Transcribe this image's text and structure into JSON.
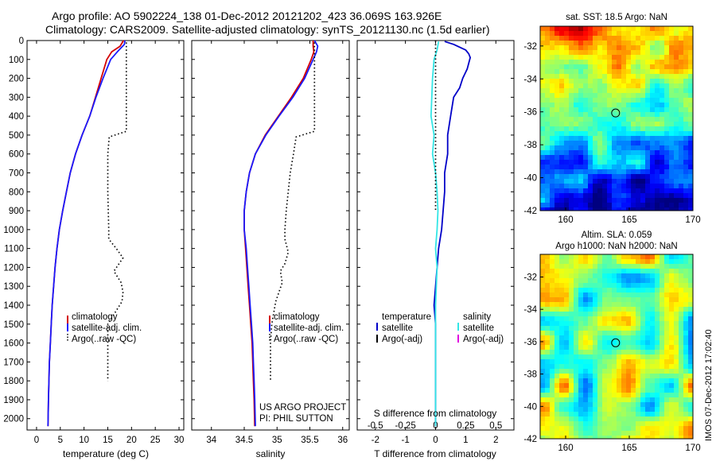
{
  "header": {
    "line1": "Argo profile: AO 5902224_138 01-Dec-2012 20121202_423 36.069S 163.926E",
    "line2": "Climatology: CARS2009. Satellite-adjusted climatology: synTS_20121130.nc (1.5d earlier)"
  },
  "project_note": {
    "line1": "US ARGO PROJECT",
    "line2": "PI: PHIL SUTTON"
  },
  "stamp": "IMOS 07-Dec-2012 17:02:40",
  "colors": {
    "climatology": "#d40000",
    "satellite": "#1a1aff",
    "argo": "#000000",
    "t_satellite": "#0000c8",
    "s_satellite": "#33e6e6",
    "s_argo": "#e000e0"
  },
  "chart_data": [
    {
      "type": "line",
      "xlabel": "temperature (deg C)",
      "ylabel": "",
      "xlim": [
        -2,
        31
      ],
      "ylim": [
        2060,
        0
      ],
      "xticks": [
        0,
        5,
        10,
        15,
        20,
        25,
        30
      ],
      "yticks": [
        0,
        100,
        200,
        300,
        400,
        500,
        600,
        700,
        800,
        900,
        1000,
        1100,
        1200,
        1300,
        1400,
        1500,
        1600,
        1700,
        1800,
        1900,
        2000
      ],
      "legend": [
        "climatology",
        "satellite-adj. clim.",
        "Argo(..raw -QC)"
      ],
      "legend_position": "lower-middle",
      "series": [
        {
          "name": "climatology",
          "style": "solid",
          "color": "#d40000",
          "x": [
            18.3,
            17.6,
            15.8,
            14.8,
            13.6,
            12.4,
            11.2,
            9.6,
            8.2,
            7.1,
            6.3,
            5.5,
            4.8,
            4.3,
            3.9,
            3.6,
            3.3,
            3.1,
            2.9,
            2.7,
            2.6,
            2.5,
            2.4
          ],
          "y": [
            0,
            30,
            60,
            100,
            200,
            300,
            400,
            500,
            600,
            700,
            800,
            900,
            1000,
            1100,
            1200,
            1300,
            1400,
            1500,
            1600,
            1700,
            1800,
            1900,
            2040
          ]
        },
        {
          "name": "satellite-adj. clim.",
          "style": "solid",
          "color": "#1a1aff",
          "x": [
            18.6,
            18.5,
            17.0,
            15.6,
            14.0,
            12.5,
            11.2,
            9.6,
            8.2,
            7.1,
            6.3,
            5.5,
            4.8,
            4.3,
            3.9,
            3.6,
            3.3,
            3.1,
            2.9,
            2.7,
            2.6,
            2.5,
            2.4
          ],
          "y": [
            0,
            20,
            60,
            100,
            200,
            300,
            400,
            500,
            600,
            700,
            800,
            900,
            1000,
            1100,
            1200,
            1300,
            1400,
            1500,
            1600,
            1700,
            1800,
            1900,
            2040
          ]
        },
        {
          "name": "Argo(..raw -QC)",
          "style": "dotted",
          "color": "#000000",
          "x": [
            18.9,
            18.9,
            18.9,
            18.9,
            18.9,
            18.9,
            15.3,
            15.0,
            15.0,
            15.0,
            15.1,
            15.2,
            15.2,
            16.8,
            18.2,
            16.3,
            17.8,
            18.2,
            18.0,
            15.0,
            15.0,
            15.0,
            15.0
          ],
          "y": [
            10,
            100,
            200,
            300,
            400,
            480,
            510,
            600,
            700,
            800,
            900,
            1000,
            1050,
            1100,
            1150,
            1220,
            1280,
            1330,
            1380,
            1500,
            1600,
            1700,
            1800
          ]
        }
      ]
    },
    {
      "type": "line",
      "xlabel": "salinity",
      "ylabel": "",
      "xlim": [
        33.7,
        36.1
      ],
      "ylim": [
        2060,
        0
      ],
      "xticks": [
        34,
        34.5,
        35,
        35.5,
        36
      ],
      "legend": [
        "climatology",
        "satellite-adj. clim.",
        "Argo(..raw -QC)"
      ],
      "legend_position": "lower-middle",
      "series": [
        {
          "name": "climatology",
          "style": "solid",
          "color": "#d40000",
          "x": [
            35.55,
            35.55,
            35.56,
            35.52,
            35.4,
            35.22,
            35.02,
            34.82,
            34.67,
            34.58,
            34.53,
            34.5,
            34.5,
            34.52,
            34.54,
            34.56,
            34.58,
            34.6,
            34.62,
            34.63,
            34.64,
            34.65,
            34.66
          ],
          "y": [
            0,
            30,
            60,
            100,
            200,
            300,
            400,
            500,
            600,
            700,
            800,
            900,
            1000,
            1100,
            1200,
            1300,
            1400,
            1500,
            1600,
            1700,
            1800,
            1900,
            2040
          ]
        },
        {
          "name": "satellite-adj. clim.",
          "style": "solid",
          "color": "#1a1aff",
          "x": [
            35.57,
            35.62,
            35.6,
            35.55,
            35.42,
            35.24,
            35.03,
            34.83,
            34.67,
            34.58,
            34.53,
            34.5,
            34.5,
            34.53,
            34.55,
            34.57,
            34.59,
            34.61,
            34.63,
            34.64,
            34.65,
            34.66,
            34.67
          ],
          "y": [
            0,
            30,
            60,
            100,
            200,
            300,
            400,
            500,
            600,
            700,
            800,
            900,
            1000,
            1100,
            1200,
            1300,
            1400,
            1500,
            1600,
            1700,
            1800,
            1900,
            2040
          ]
        },
        {
          "name": "Argo(..raw -QC)",
          "style": "dotted",
          "color": "#000000",
          "x": [
            35.57,
            35.57,
            35.57,
            35.57,
            35.57,
            35.57,
            35.29,
            35.25,
            35.2,
            35.17,
            35.14,
            35.12,
            35.12,
            35.17,
            35.12,
            35.05,
            35.08,
            35.03,
            34.98,
            34.92,
            34.9,
            34.9,
            34.9
          ],
          "y": [
            10,
            100,
            200,
            300,
            400,
            480,
            510,
            600,
            700,
            800,
            900,
            1000,
            1050,
            1120,
            1180,
            1220,
            1280,
            1330,
            1380,
            1500,
            1600,
            1700,
            1800
          ]
        }
      ]
    },
    {
      "type": "line",
      "xlabel": "T difference from climatology",
      "xlabel_top": "S difference from climatology",
      "ylabel": "",
      "xlim": [
        -2.6,
        2.6
      ],
      "ylim": [
        2060,
        0
      ],
      "xticks_bottom": [
        -2,
        -1,
        0,
        1,
        2
      ],
      "xticks_top_labels": [
        "-0.5",
        "-0.25",
        "0",
        "0.25",
        "0.5"
      ],
      "legend": [
        "temperature",
        "satellite",
        "Argo(-adj)",
        "salinity",
        "satellite",
        "Argo(-adj)"
      ],
      "legend_position": "lower-middle",
      "series": [
        {
          "name": "temperature satellite",
          "style": "solid",
          "color": "#0000c8",
          "x": [
            0.3,
            0.6,
            1.0,
            1.1,
            1.15,
            1.05,
            0.9,
            0.8,
            0.6,
            0.5,
            0.4,
            0.4,
            0.3,
            0.3,
            0.25,
            0.2,
            0.1,
            0.05,
            0.0,
            -0.05,
            0.0,
            0.0,
            0.0,
            0.0
          ],
          "y": [
            5,
            20,
            50,
            70,
            90,
            150,
            200,
            250,
            300,
            400,
            500,
            600,
            700,
            800,
            900,
            1000,
            1100,
            1200,
            1300,
            1400,
            1500,
            1600,
            1800,
            2040
          ]
        },
        {
          "name": "salinity satellite",
          "style": "solid",
          "color": "#33e6e6",
          "x": [
            0.1,
            0.05,
            -0.05,
            -0.1,
            -0.15,
            -0.05,
            -0.1,
            0.0,
            0.05,
            0.08,
            0.05,
            0.0,
            0.05,
            0.0,
            0.0,
            0.0,
            0.0
          ],
          "y": [
            5,
            50,
            100,
            200,
            400,
            500,
            600,
            700,
            800,
            900,
            1000,
            1100,
            1200,
            1400,
            1600,
            1800,
            2040
          ]
        },
        {
          "name": "Argo reference (0)",
          "style": "dotted",
          "color": "#000000",
          "x": [
            0,
            0,
            0,
            0
          ],
          "y": [
            0,
            300,
            600,
            900
          ]
        }
      ]
    },
    {
      "type": "heatmap",
      "title": "sat. SST: 18.5 Argo: NaN",
      "xlim": [
        158,
        170
      ],
      "ylim": [
        -42,
        -30.8
      ],
      "xticks": [
        160,
        165,
        170
      ],
      "yticks": [
        -32,
        -34,
        -36,
        -38,
        -40,
        -42
      ],
      "marker": {
        "lon": 163.926,
        "lat": -36.069
      }
    },
    {
      "type": "heatmap",
      "title_line1": "Altim. SLA: 0.059",
      "title_line2": "Argo h1000: NaN h2000: NaN",
      "xlim": [
        158,
        170
      ],
      "ylim": [
        -42,
        -30.6
      ],
      "xticks": [
        160,
        165,
        170
      ],
      "yticks": [
        -32,
        -34,
        -36,
        -38,
        -40,
        -42
      ],
      "marker": {
        "lon": 163.926,
        "lat": -36.069
      }
    }
  ]
}
